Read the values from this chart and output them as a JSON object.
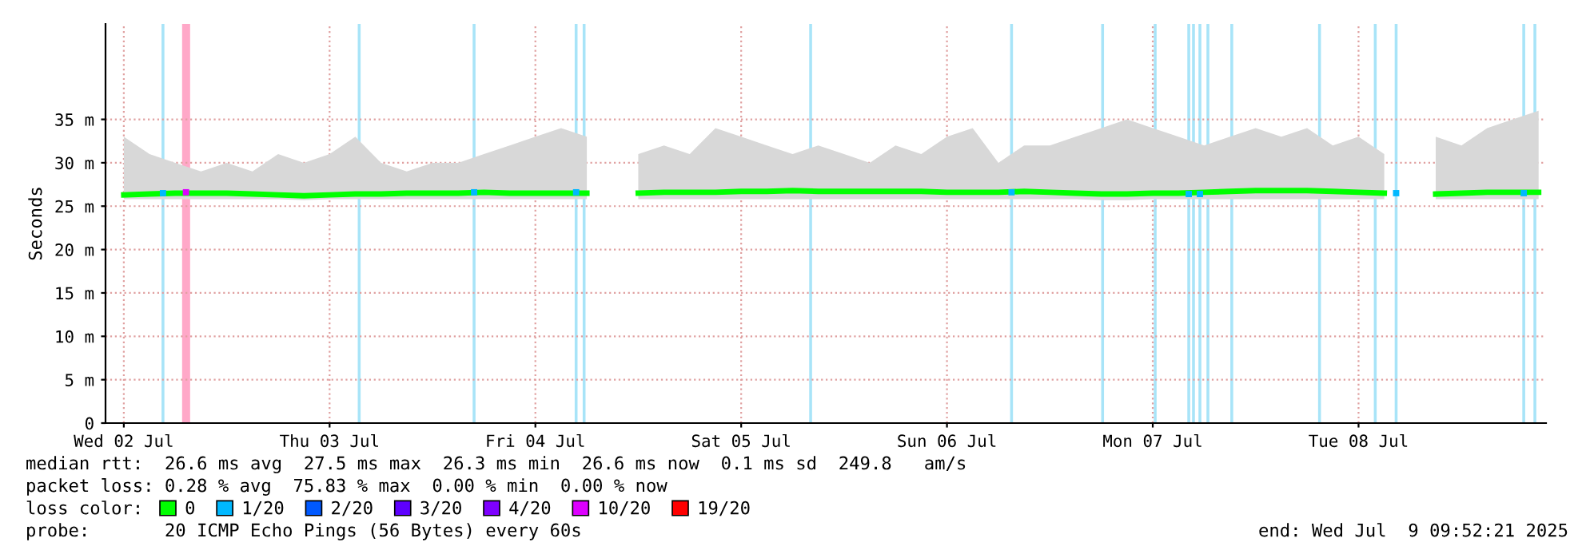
{
  "chart_data": {
    "type": "line",
    "ylabel": "Seconds",
    "xlim": [
      "2025-07-02T09:52",
      "2025-07-09T09:52"
    ],
    "xticks": [
      {
        "value": "2025-07-02T12:00",
        "label": "Wed 02 Jul"
      },
      {
        "value": "2025-07-03T12:00",
        "label": "Thu 03 Jul"
      },
      {
        "value": "2025-07-04T12:00",
        "label": "Fri 04 Jul"
      },
      {
        "value": "2025-07-05T12:00",
        "label": "Sat 05 Jul"
      },
      {
        "value": "2025-07-06T12:00",
        "label": "Sun 06 Jul"
      },
      {
        "value": "2025-07-07T12:00",
        "label": "Mon 07 Jul"
      },
      {
        "value": "2025-07-08T12:00",
        "label": "Tue 08 Jul"
      }
    ],
    "ylim": [
      0,
      46
    ],
    "yticks": [
      0,
      {
        "value": 5,
        "label": "5 m"
      },
      {
        "value": 10,
        "label": "10 m"
      },
      {
        "value": 15,
        "label": "15 m"
      },
      {
        "value": 20,
        "label": "20 m"
      },
      {
        "value": 25,
        "label": "25 m"
      },
      {
        "value": 30,
        "label": "30 m"
      },
      {
        "value": 35,
        "label": "35 m"
      }
    ],
    "grid": true,
    "legend": "bottom",
    "legend_title": "loss color:",
    "series": [
      {
        "name": "0",
        "color": "#00ff00",
        "x": [
          "2025-07-02T12:00",
          "2025-07-02T15:00",
          "2025-07-02T18:00",
          "2025-07-02T21:00",
          "2025-07-03T00:00",
          "2025-07-03T03:00",
          "2025-07-03T06:00",
          "2025-07-03T09:00",
          "2025-07-03T12:00",
          "2025-07-03T15:00",
          "2025-07-03T18:00",
          "2025-07-03T21:00",
          "2025-07-04T00:00",
          "2025-07-04T03:00",
          "2025-07-04T06:00",
          "2025-07-04T09:00",
          "2025-07-04T12:00",
          "2025-07-04T15:00",
          "2025-07-04T18:00",
          "2025-07-04T21:00",
          "2025-07-05T00:00",
          "2025-07-05T03:00",
          "2025-07-05T06:00",
          "2025-07-05T09:00",
          "2025-07-05T12:00",
          "2025-07-05T15:00",
          "2025-07-05T18:00",
          "2025-07-05T21:00",
          "2025-07-06T00:00",
          "2025-07-06T03:00",
          "2025-07-06T06:00",
          "2025-07-06T09:00",
          "2025-07-06T12:00",
          "2025-07-06T15:00",
          "2025-07-06T18:00",
          "2025-07-06T21:00",
          "2025-07-07T00:00",
          "2025-07-07T03:00",
          "2025-07-07T06:00",
          "2025-07-07T09:00",
          "2025-07-07T12:00",
          "2025-07-07T15:00",
          "2025-07-07T18:00",
          "2025-07-07T21:00",
          "2025-07-08T00:00",
          "2025-07-08T03:00",
          "2025-07-08T06:00",
          "2025-07-08T09:00",
          "2025-07-08T12:00",
          "2025-07-08T15:00",
          "2025-07-08T18:00",
          "2025-07-08T21:00",
          "2025-07-09T00:00",
          "2025-07-09T03:00",
          "2025-07-09T06:00",
          "2025-07-09T09:00"
        ],
        "values": [
          26.3,
          26.4,
          26.5,
          26.5,
          26.5,
          26.4,
          26.3,
          26.2,
          26.3,
          26.4,
          26.4,
          26.5,
          26.5,
          26.5,
          26.6,
          26.5,
          26.5,
          26.5,
          26.5,
          null,
          26.5,
          26.6,
          26.6,
          26.6,
          26.7,
          26.7,
          26.8,
          26.7,
          26.7,
          26.7,
          26.7,
          26.7,
          26.6,
          26.6,
          26.6,
          26.7,
          26.6,
          26.5,
          26.4,
          26.4,
          26.5,
          26.5,
          26.6,
          26.7,
          26.8,
          26.8,
          26.8,
          26.7,
          26.6,
          26.5,
          null,
          26.4,
          26.5,
          26.6,
          26.6,
          26.6
        ],
        "lower": [
          25.8,
          25.8,
          25.8,
          25.8,
          25.8,
          25.8,
          25.8,
          25.7,
          25.8,
          25.8,
          25.8,
          25.8,
          25.8,
          25.8,
          25.8,
          25.8,
          25.8,
          25.8,
          25.8,
          null,
          25.8,
          25.8,
          25.8,
          25.8,
          25.8,
          25.8,
          25.8,
          25.8,
          25.8,
          25.8,
          25.8,
          25.8,
          25.8,
          25.8,
          25.8,
          25.8,
          25.8,
          25.8,
          25.7,
          25.7,
          25.8,
          25.8,
          25.8,
          25.8,
          25.8,
          25.8,
          25.8,
          25.8,
          25.8,
          25.8,
          null,
          25.8,
          25.8,
          25.8,
          25.8,
          25.8
        ],
        "upper": [
          33,
          31,
          30,
          29,
          30,
          29,
          31,
          30,
          31,
          33,
          30,
          29,
          30,
          30,
          31,
          32,
          33,
          34,
          33,
          null,
          31,
          32,
          31,
          34,
          33,
          32,
          31,
          32,
          31,
          30,
          32,
          31,
          33,
          34,
          30,
          32,
          32,
          33,
          34,
          35,
          34,
          33,
          32,
          33,
          34,
          33,
          34,
          32,
          33,
          31,
          null,
          33,
          32,
          34,
          35,
          36
        ]
      },
      {
        "name": "1/20",
        "type": "scatter",
        "color": "#00b8ff",
        "x": [
          "2025-07-02T16:34",
          "2025-07-04T04:51",
          "2025-07-04T16:45",
          "2025-07-06T19:32",
          "2025-07-07T16:12",
          "2025-07-07T17:30",
          "2025-07-08T16:23",
          "2025-07-09T07:16"
        ],
        "values": [
          26.5,
          26.6,
          26.6,
          26.6,
          26.4,
          26.4,
          26.5,
          26.5
        ]
      },
      {
        "name": "2/20",
        "type": "scatter",
        "color": "#0059ff"
      },
      {
        "name": "3/20",
        "type": "scatter",
        "color": "#5e00ff"
      },
      {
        "name": "4/20",
        "type": "scatter",
        "color": "#7e00ff"
      },
      {
        "name": "10/20",
        "type": "scatter",
        "color": "#dd00ff",
        "x": [
          "2025-07-02T19:15"
        ],
        "values": [
          26.6
        ]
      },
      {
        "name": "19/20",
        "type": "scatter",
        "color": "#ff0000"
      }
    ],
    "bands": [
      {
        "axis": "x",
        "from": "2025-07-02T18:48",
        "to": "2025-07-02T19:44",
        "color": "#ffa8c8"
      },
      {
        "axis": "x",
        "from": "2025-07-02T16:24",
        "to": "2025-07-02T16:44",
        "color": "#a8e4f8"
      },
      {
        "axis": "x",
        "from": "2025-07-03T15:17",
        "to": "2025-07-03T15:37",
        "color": "#a8e4f8"
      },
      {
        "axis": "x",
        "from": "2025-07-04T04:41",
        "to": "2025-07-04T05:01",
        "color": "#a8e4f8"
      },
      {
        "axis": "x",
        "from": "2025-07-04T16:35",
        "to": "2025-07-04T16:55",
        "color": "#a8e4f8"
      },
      {
        "axis": "x",
        "from": "2025-07-04T17:31",
        "to": "2025-07-04T17:51",
        "color": "#a8e4f8"
      },
      {
        "axis": "x",
        "from": "2025-07-05T19:56",
        "to": "2025-07-05T20:16",
        "color": "#a8e4f8"
      },
      {
        "axis": "x",
        "from": "2025-07-06T19:22",
        "to": "2025-07-06T19:42",
        "color": "#a8e4f8"
      },
      {
        "axis": "x",
        "from": "2025-07-07T05:59",
        "to": "2025-07-07T06:19",
        "color": "#a8e4f8"
      },
      {
        "axis": "x",
        "from": "2025-07-07T12:07",
        "to": "2025-07-07T12:27",
        "color": "#a8e4f8"
      },
      {
        "axis": "x",
        "from": "2025-07-07T16:02",
        "to": "2025-07-07T16:22",
        "color": "#a8e4f8"
      },
      {
        "axis": "x",
        "from": "2025-07-07T16:35",
        "to": "2025-07-07T16:55",
        "color": "#a8e4f8"
      },
      {
        "axis": "x",
        "from": "2025-07-07T17:20",
        "to": "2025-07-07T17:40",
        "color": "#a8e4f8"
      },
      {
        "axis": "x",
        "from": "2025-07-07T18:16",
        "to": "2025-07-07T18:36",
        "color": "#a8e4f8"
      },
      {
        "axis": "x",
        "from": "2025-07-07T21:03",
        "to": "2025-07-07T21:23",
        "color": "#a8e4f8"
      },
      {
        "axis": "x",
        "from": "2025-07-08T07:17",
        "to": "2025-07-08T07:37",
        "color": "#a8e4f8"
      },
      {
        "axis": "x",
        "from": "2025-07-08T13:47",
        "to": "2025-07-08T14:07",
        "color": "#a8e4f8"
      },
      {
        "axis": "x",
        "from": "2025-07-08T16:13",
        "to": "2025-07-08T16:33",
        "color": "#a8e4f8"
      },
      {
        "axis": "x",
        "from": "2025-07-09T07:06",
        "to": "2025-07-09T07:26",
        "color": "#a8e4f8"
      },
      {
        "axis": "x",
        "from": "2025-07-09T08:24",
        "to": "2025-07-09T08:44",
        "color": "#a8e4f8"
      }
    ],
    "annotations": [
      "median rtt:  26.6 ms avg  27.5 ms max  26.3 ms min  26.6 ms now  0.1 ms sd  249.8   am/s",
      "packet loss: 0.28 % avg  75.83 % max  0.00 % min  0.00 % now",
      "probe:       20 ICMP Echo Pings (56 Bytes) every 60s",
      "end: Wed Jul  9 09:52:21 2025"
    ]
  }
}
